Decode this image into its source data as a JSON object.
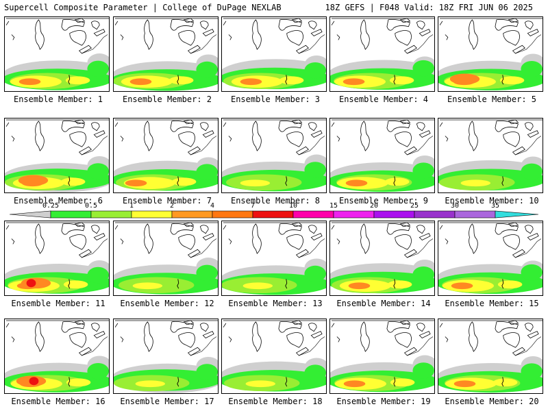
{
  "header": {
    "title": "Supercell Composite Parameter | College of DuPage NEXLAB",
    "run_info": "18Z GEFS | F048 Valid: 18Z FRI JUN 06 2025"
  },
  "legend": {
    "thresholds": [
      "0.25",
      "0.5",
      "1",
      "2",
      "4",
      "7",
      "10",
      "15",
      "20",
      "25",
      "30",
      "35"
    ],
    "colors": [
      "#cfcfcf",
      "#33ee33",
      "#99ee33",
      "#ffff33",
      "#ff9922",
      "#ff7711",
      "#ee1111",
      "#ff00aa",
      "#ee22ee",
      "#aa11ee",
      "#9933cc",
      "#aa66dd",
      "#33dddd"
    ]
  },
  "colors": {
    "gray": "#cfcfcf",
    "green": "#33ee33",
    "lime": "#99ee33",
    "yellow": "#ffff33",
    "orange": "#ff8822",
    "red": "#ee1111"
  },
  "members": [
    {
      "label": "Ensemble Member: 1",
      "intensity": 3
    },
    {
      "label": "Ensemble Member: 2",
      "intensity": 3
    },
    {
      "label": "Ensemble Member: 3",
      "intensity": 3
    },
    {
      "label": "Ensemble Member: 4",
      "intensity": 3
    },
    {
      "label": "Ensemble Member: 5",
      "intensity": 4
    },
    {
      "label": "Ensemble Member: 6",
      "intensity": 4
    },
    {
      "label": "Ensemble Member: 7",
      "intensity": 3
    },
    {
      "label": "Ensemble Member: 8",
      "intensity": 2
    },
    {
      "label": "Ensemble Member: 9",
      "intensity": 3
    },
    {
      "label": "Ensemble Member: 10",
      "intensity": 2
    },
    {
      "label": "Ensemble Member: 11",
      "intensity": 5
    },
    {
      "label": "Ensemble Member: 12",
      "intensity": 2
    },
    {
      "label": "Ensemble Member: 13",
      "intensity": 2
    },
    {
      "label": "Ensemble Member: 14",
      "intensity": 3
    },
    {
      "label": "Ensemble Member: 15",
      "intensity": 3
    },
    {
      "label": "Ensemble Member: 16",
      "intensity": 5
    },
    {
      "label": "Ensemble Member: 17",
      "intensity": 2
    },
    {
      "label": "Ensemble Member: 18",
      "intensity": 2
    },
    {
      "label": "Ensemble Member: 19",
      "intensity": 3
    },
    {
      "label": "Ensemble Member: 20",
      "intensity": 3
    }
  ]
}
